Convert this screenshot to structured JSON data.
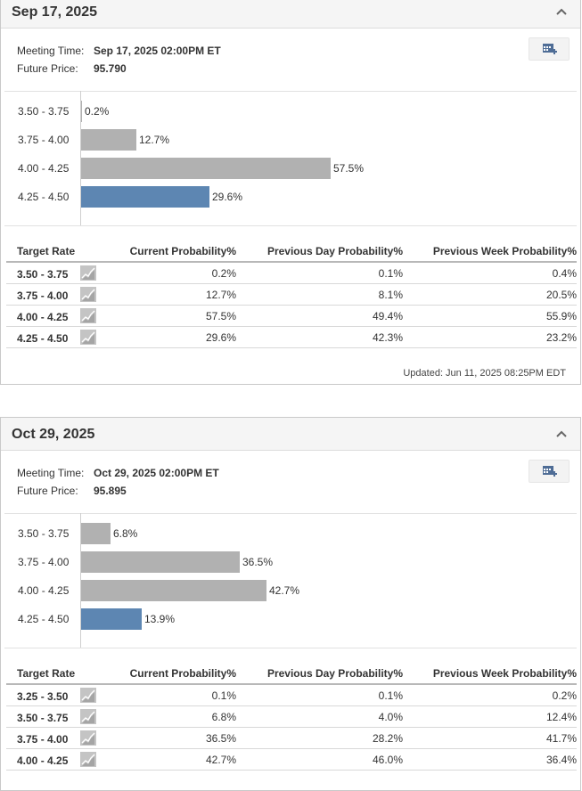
{
  "colors": {
    "bar": "#b1b1b1",
    "current_bar": "#5d86b2"
  },
  "panels": [
    {
      "title": "Sep 17, 2025",
      "meeting_time_label": "Meeting Time:",
      "meeting_time": "Sep 17, 2025 02:00PM ET",
      "future_price_label": "Future Price:",
      "future_price": "95.790",
      "chart": [
        {
          "range": "3.50 - 3.75",
          "value": 0.2,
          "label": "0.2%",
          "current": false
        },
        {
          "range": "3.75 - 4.00",
          "value": 12.7,
          "label": "12.7%",
          "current": false
        },
        {
          "range": "4.00 - 4.25",
          "value": 57.5,
          "label": "57.5%",
          "current": false
        },
        {
          "range": "4.25 - 4.50",
          "value": 29.6,
          "label": "29.6%",
          "current": true
        }
      ],
      "table": {
        "headers": [
          "Target Rate",
          "Current Probability%",
          "Previous Day Probability%",
          "Previous Week Probability%"
        ],
        "rows": [
          {
            "rate": "3.50 - 3.75",
            "current": "0.2%",
            "prev_day": "0.1%",
            "prev_week": "0.4%"
          },
          {
            "rate": "3.75 - 4.00",
            "current": "12.7%",
            "prev_day": "8.1%",
            "prev_week": "20.5%"
          },
          {
            "rate": "4.00 - 4.25",
            "current": "57.5%",
            "prev_day": "49.4%",
            "prev_week": "55.9%"
          },
          {
            "rate": "4.25 - 4.50",
            "current": "29.6%",
            "prev_day": "42.3%",
            "prev_week": "23.2%"
          }
        ]
      },
      "updated": "Updated: Jun 11, 2025 08:25PM EDT"
    },
    {
      "title": "Oct 29, 2025",
      "meeting_time_label": "Meeting Time:",
      "meeting_time": "Oct 29, 2025 02:00PM ET",
      "future_price_label": "Future Price:",
      "future_price": "95.895",
      "chart": [
        {
          "range": "3.50 - 3.75",
          "value": 6.8,
          "label": "6.8%",
          "current": false
        },
        {
          "range": "3.75 - 4.00",
          "value": 36.5,
          "label": "36.5%",
          "current": false
        },
        {
          "range": "4.00 - 4.25",
          "value": 42.7,
          "label": "42.7%",
          "current": false
        },
        {
          "range": "4.25 - 4.50",
          "value": 13.9,
          "label": "13.9%",
          "current": true
        }
      ],
      "table": {
        "headers": [
          "Target Rate",
          "Current Probability%",
          "Previous Day Probability%",
          "Previous Week Probability%"
        ],
        "rows": [
          {
            "rate": "3.25 - 3.50",
            "current": "0.1%",
            "prev_day": "0.1%",
            "prev_week": "0.2%"
          },
          {
            "rate": "3.50 - 3.75",
            "current": "6.8%",
            "prev_day": "4.0%",
            "prev_week": "12.4%"
          },
          {
            "rate": "3.75 - 4.00",
            "current": "36.5%",
            "prev_day": "28.2%",
            "prev_week": "41.7%"
          },
          {
            "rate": "4.00 - 4.25",
            "current": "42.7%",
            "prev_day": "46.0%",
            "prev_week": "36.4%"
          }
        ]
      }
    }
  ]
}
